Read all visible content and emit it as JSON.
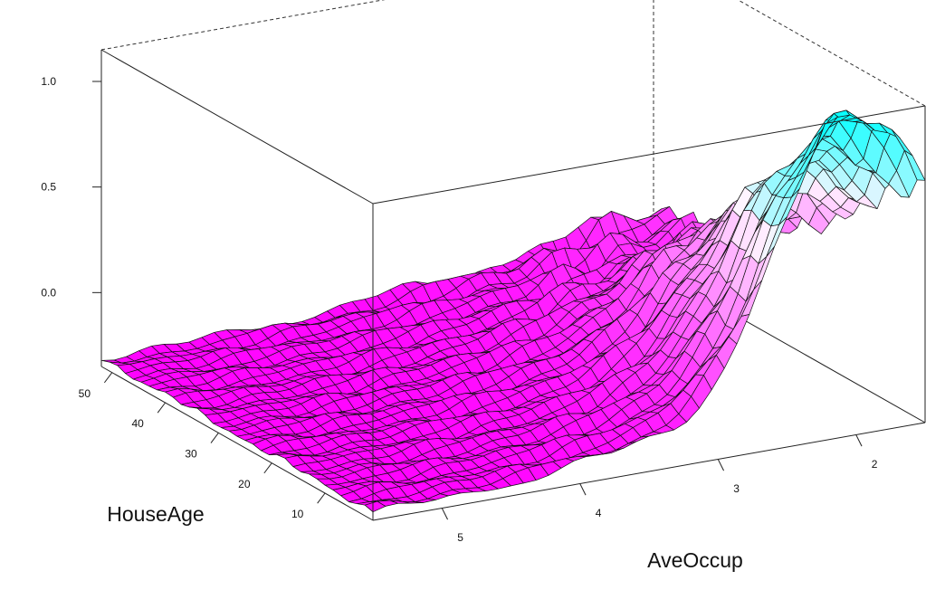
{
  "chart_data": {
    "type": "surface",
    "title": "",
    "xlabel": "AveOccup",
    "ylabel": "HouseAge",
    "zlabel": "",
    "x_ticks": [
      "5",
      "4",
      "3",
      "2"
    ],
    "y_ticks": [
      "50",
      "40",
      "30",
      "20",
      "10"
    ],
    "z_ticks": [
      "0.0",
      "0.5",
      "1.0"
    ],
    "xlim": [
      5.5,
      1.5
    ],
    "ylim": [
      1,
      52
    ],
    "zlim": [
      -0.35,
      1.15
    ],
    "grid_rows_housage": [
      52,
      1
    ],
    "grid_cols_aveoccup": [
      5.5,
      1.5
    ],
    "color_low": "#ff00ff",
    "color_high": "#00ffff",
    "surface_description": "partial dependence surface; near -0.3 at high AveOccup and high HouseAge, rising to about 1.1 at low AveOccup (around 2) and low HouseAge",
    "grid_on": false
  }
}
